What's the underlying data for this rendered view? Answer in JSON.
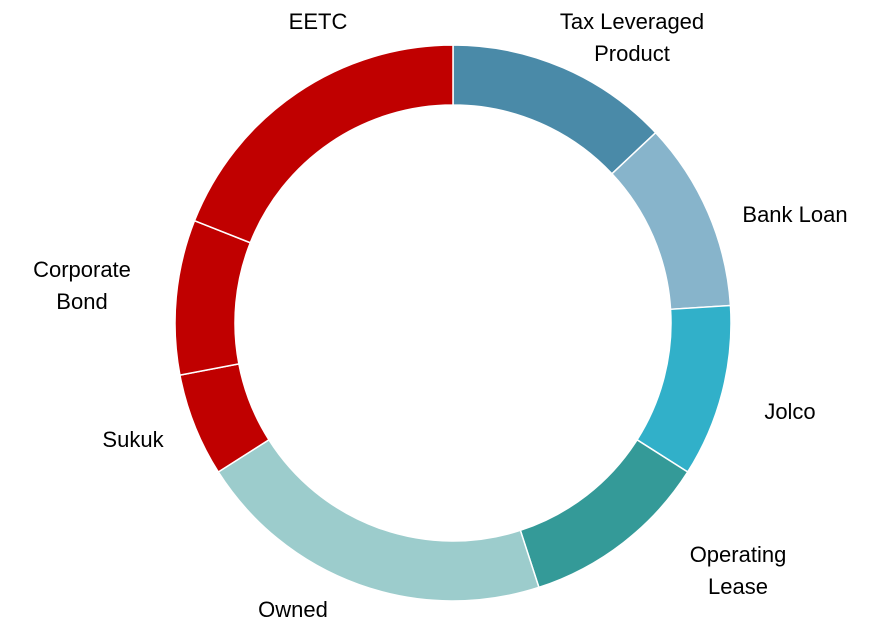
{
  "chart_data": {
    "type": "donut",
    "categories": [
      "Tax Leveraged Product",
      "Bank Loan",
      "Jolco",
      "Operating Lease",
      "Owned",
      "Sukuk",
      "Corporate Bond",
      "EETC"
    ],
    "values": [
      13,
      11,
      10,
      11,
      21,
      6,
      9,
      19
    ],
    "colors": [
      "#4a8aa8",
      "#87b4cb",
      "#31b0c9",
      "#349a98",
      "#9ccccc",
      "#c00000",
      "#c00000",
      "#c00000"
    ]
  }
}
